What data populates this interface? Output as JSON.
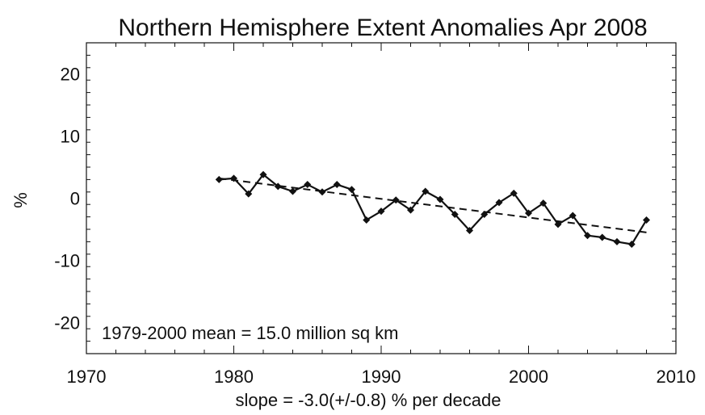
{
  "chart_data": {
    "type": "line",
    "title": "Northern Hemisphere Extent Anomalies Apr 2008",
    "xlabel": "slope =  -3.0(+/-0.8) % per decade",
    "ylabel": "%",
    "xlim": [
      1970,
      2010
    ],
    "ylim": [
      -25,
      25
    ],
    "x_ticks": [
      1970,
      1980,
      1990,
      2000,
      2010
    ],
    "y_ticks": [
      -20,
      -10,
      0,
      10,
      20
    ],
    "grid": false,
    "annotation": "1979-2000 mean =  15.0 million sq km",
    "series": [
      {
        "style": "solid line with diamond markers",
        "x": [
          1979,
          1980,
          1981,
          1982,
          1983,
          1984,
          1985,
          1986,
          1987,
          1988,
          1989,
          1990,
          1991,
          1992,
          1993,
          1994,
          1995,
          1996,
          1997,
          1998,
          1999,
          2000,
          2001,
          2002,
          2003,
          2004,
          2005,
          2006,
          2007,
          2008
        ],
        "y": [
          3.0,
          3.2,
          0.7,
          3.8,
          1.9,
          1.1,
          2.2,
          1.0,
          2.2,
          1.4,
          -3.5,
          -2.1,
          -0.3,
          -1.9,
          1.1,
          -0.2,
          -2.6,
          -5.2,
          -2.6,
          -0.7,
          0.8,
          -2.4,
          -0.8,
          -4.2,
          -2.8,
          -6.0,
          -6.3,
          -7.0,
          -7.4,
          -3.5
        ]
      },
      {
        "style": "dashed trend line",
        "x": [
          1979,
          2008
        ],
        "y": [
          3.2,
          -5.5
        ]
      }
    ],
    "colors": {
      "line": "#111111",
      "axis": "#111111",
      "background": "#ffffff"
    }
  }
}
